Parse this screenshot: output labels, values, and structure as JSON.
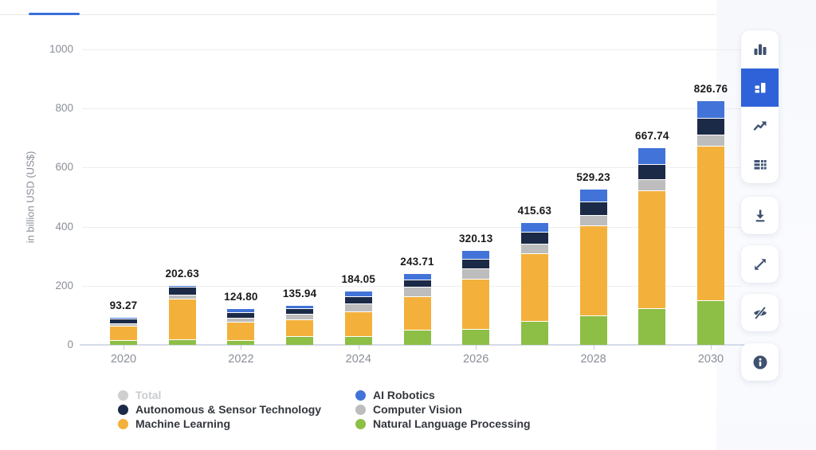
{
  "tab_bar": {
    "active_color": "#3A6FD8",
    "track_color": "#e8e8e8"
  },
  "chart_data": {
    "type": "bar",
    "stacked": true,
    "ylabel": "in billion USD (US$)",
    "categories": [
      "2020",
      "2021",
      "2022",
      "2023",
      "2024",
      "2025",
      "2026",
      "2027",
      "2028",
      "2029",
      "2030"
    ],
    "x_tick_labels": [
      "2020",
      "2022",
      "2024",
      "2026",
      "2028",
      "2030"
    ],
    "y_ticks": [
      0,
      200,
      400,
      600,
      800,
      1000
    ],
    "ylim": [
      0,
      1100
    ],
    "grid": true,
    "legend_position": "bottom",
    "totals": [
      93.27,
      202.63,
      124.8,
      135.94,
      184.05,
      243.71,
      320.13,
      415.63,
      529.23,
      667.74,
      826.76
    ],
    "total_labels": [
      "93.27",
      "202.63",
      "124.80",
      "135.94",
      "184.05",
      "243.71",
      "320.13",
      "415.63",
      "529.23",
      "667.74",
      "826.76"
    ],
    "series": [
      {
        "name": "Natural Language Processing",
        "color": "#8DBE46",
        "values": [
          15,
          19,
          17,
          29,
          29,
          50,
          55,
          80,
          100,
          123,
          150
        ]
      },
      {
        "name": "Machine Learning",
        "color": "#F3B13C",
        "values": [
          50,
          138,
          62,
          57,
          83,
          115,
          168,
          228.63,
          305.23,
          398.74,
          523.76
        ]
      },
      {
        "name": "Computer Vision",
        "color": "#BDBDBD",
        "values": [
          9,
          14,
          12,
          19,
          29,
          31,
          36,
          33,
          34,
          38,
          39
        ]
      },
      {
        "name": "Autonomous & Sensor Technology",
        "color": "#1B2A47",
        "values": [
          16,
          27,
          20,
          20,
          24,
          26,
          31,
          40,
          46,
          52,
          55
        ]
      },
      {
        "name": "AI Robotics",
        "color": "#4273D8",
        "values": [
          3.27,
          4.63,
          13.8,
          10.94,
          19.05,
          21.71,
          30.13,
          34,
          44,
          56,
          59
        ]
      }
    ]
  },
  "legend": {
    "columns": [
      [
        {
          "label": "Total",
          "color": "#cfcfcf",
          "disabled": true
        },
        {
          "label": "Autonomous & Sensor Technology",
          "color": "#1B2A47",
          "disabled": false
        },
        {
          "label": "Machine Learning",
          "color": "#F3B13C",
          "disabled": false
        }
      ],
      [
        {
          "label": "AI Robotics",
          "color": "#4273D8",
          "disabled": false
        },
        {
          "label": "Computer Vision",
          "color": "#BDBDBD",
          "disabled": false
        },
        {
          "label": "Natural Language Processing",
          "color": "#8DBE46",
          "disabled": false
        }
      ]
    ]
  },
  "toolbar": {
    "icon_color": "#3E5170",
    "selected_color": "#2F62D9",
    "chart_type_buttons": [
      {
        "icon": "bar-chart",
        "selected": false
      },
      {
        "icon": "stacked-bar-chart",
        "selected": true
      },
      {
        "icon": "line-chart",
        "selected": false
      },
      {
        "icon": "table-view",
        "selected": false
      }
    ],
    "action_buttons": [
      {
        "icon": "download"
      },
      {
        "icon": "expand"
      },
      {
        "icon": "hide-series"
      },
      {
        "icon": "info"
      }
    ]
  }
}
